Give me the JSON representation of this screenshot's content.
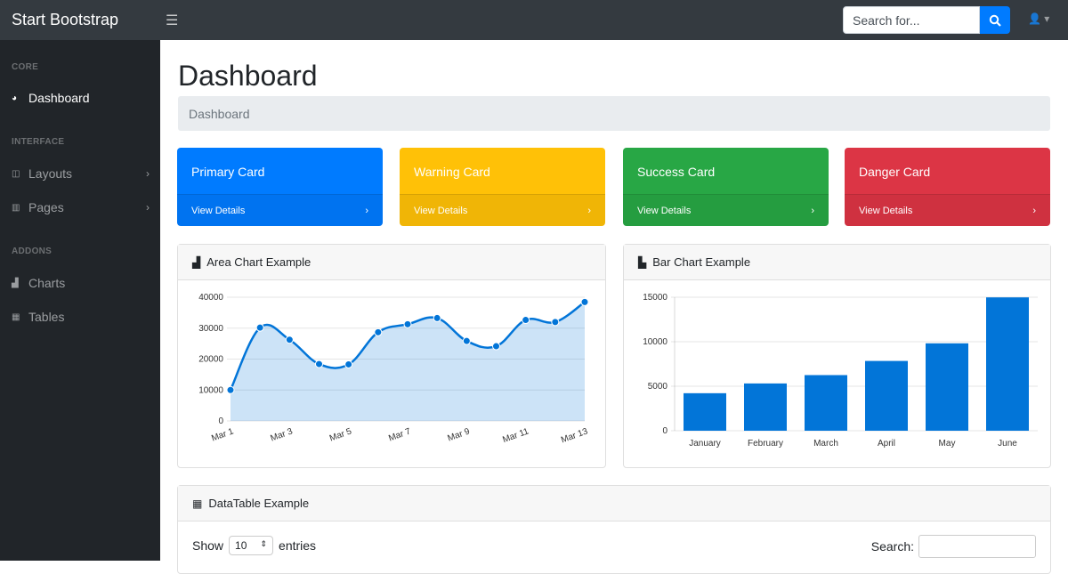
{
  "topnav": {
    "brand": "Start Bootstrap",
    "toggle_icon": "bars-icon",
    "search_placeholder": "Search for...",
    "search_icon": "search-icon",
    "user_icon": "user-icon"
  },
  "sidebar": {
    "sections": [
      {
        "heading": "CORE",
        "items": [
          {
            "label": "Dashboard",
            "icon": "tachometer-icon",
            "active": true
          }
        ]
      },
      {
        "heading": "INTERFACE",
        "items": [
          {
            "label": "Layouts",
            "icon": "columns-icon",
            "chevron": true
          },
          {
            "label": "Pages",
            "icon": "book-open-icon",
            "chevron": true
          }
        ]
      },
      {
        "heading": "ADDONS",
        "items": [
          {
            "label": "Charts",
            "icon": "area-chart-icon"
          },
          {
            "label": "Tables",
            "icon": "table-icon"
          }
        ]
      }
    ]
  },
  "page": {
    "title": "Dashboard",
    "breadcrumb": "Dashboard"
  },
  "cards": [
    {
      "title": "Primary Card",
      "link": "View Details",
      "color": "#007bff"
    },
    {
      "title": "Warning Card",
      "link": "View Details",
      "color": "#ffc107"
    },
    {
      "title": "Success Card",
      "link": "View Details",
      "color": "#28a745"
    },
    {
      "title": "Danger Card",
      "link": "View Details",
      "color": "#dc3545"
    }
  ],
  "area_panel": {
    "title": "Area Chart Example"
  },
  "bar_panel": {
    "title": "Bar Chart Example"
  },
  "table_panel": {
    "title": "DataTable Example",
    "show": "Show",
    "entries_value": "10",
    "entries": "entries",
    "search": "Search:"
  },
  "chart_data": [
    {
      "type": "area",
      "x": [
        "Mar 1",
        "Mar 2",
        "Mar 3",
        "Mar 4",
        "Mar 5",
        "Mar 6",
        "Mar 7",
        "Mar 8",
        "Mar 9",
        "Mar 10",
        "Mar 11",
        "Mar 12",
        "Mar 13"
      ],
      "x_tick_labels": [
        "Mar 1",
        "Mar 3",
        "Mar 5",
        "Mar 7",
        "Mar 9",
        "Mar 11",
        "Mar 13"
      ],
      "values": [
        10000,
        30162,
        26263,
        18394,
        18287,
        28682,
        31274,
        33259,
        25849,
        24159,
        32651,
        31984,
        38451
      ],
      "ylim": [
        0,
        40000
      ],
      "y_ticks": [
        0,
        10000,
        20000,
        30000,
        40000
      ],
      "grid": true,
      "color": "#0275d8"
    },
    {
      "type": "bar",
      "categories": [
        "January",
        "February",
        "March",
        "April",
        "May",
        "June"
      ],
      "values": [
        4215,
        5312,
        6251,
        7841,
        9821,
        14984
      ],
      "ylim": [
        0,
        15000
      ],
      "y_ticks": [
        0,
        5000,
        10000,
        15000
      ],
      "grid": true,
      "color": "#0275d8"
    }
  ]
}
